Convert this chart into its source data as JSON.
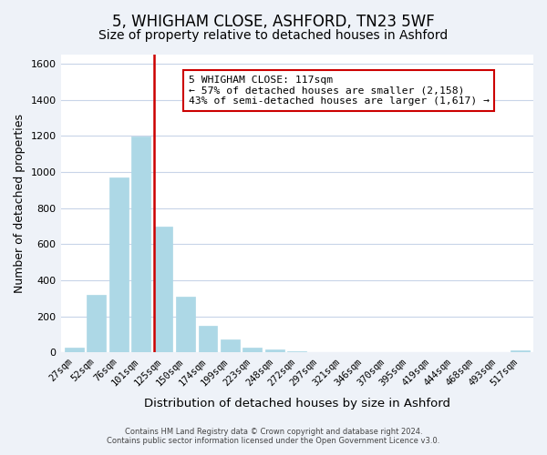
{
  "title": "5, WHIGHAM CLOSE, ASHFORD, TN23 5WF",
  "subtitle": "Size of property relative to detached houses in Ashford",
  "xlabel": "Distribution of detached houses by size in Ashford",
  "ylabel": "Number of detached properties",
  "bar_labels": [
    "27sqm",
    "52sqm",
    "76sqm",
    "101sqm",
    "125sqm",
    "150sqm",
    "174sqm",
    "199sqm",
    "223sqm",
    "248sqm",
    "272sqm",
    "297sqm",
    "321sqm",
    "346sqm",
    "370sqm",
    "395sqm",
    "419sqm",
    "444sqm",
    "468sqm",
    "493sqm",
    "517sqm"
  ],
  "bar_values": [
    28,
    320,
    968,
    1195,
    700,
    310,
    150,
    75,
    25,
    15,
    5,
    2,
    2,
    0,
    0,
    0,
    0,
    0,
    0,
    0,
    12
  ],
  "bar_color": "#add8e6",
  "bar_edge_color": "#add8e6",
  "vline_color": "#cc0000",
  "annotation_title": "5 WHIGHAM CLOSE: 117sqm",
  "annotation_line1": "← 57% of detached houses are smaller (2,158)",
  "annotation_line2": "43% of semi-detached houses are larger (1,617) →",
  "annotation_box_color": "#ffffff",
  "annotation_box_edge": "#cc0000",
  "ylim": [
    0,
    1650
  ],
  "yticks": [
    0,
    200,
    400,
    600,
    800,
    1000,
    1200,
    1400,
    1600
  ],
  "footer1": "Contains HM Land Registry data © Crown copyright and database right 2024.",
  "footer2": "Contains public sector information licensed under the Open Government Licence v3.0.",
  "bg_color": "#eef2f8",
  "plot_bg_color": "#ffffff",
  "grid_color": "#c8d4e8",
  "title_fontsize": 12,
  "subtitle_fontsize": 10,
  "axis_label_fontsize": 9,
  "tick_fontsize": 7.5
}
